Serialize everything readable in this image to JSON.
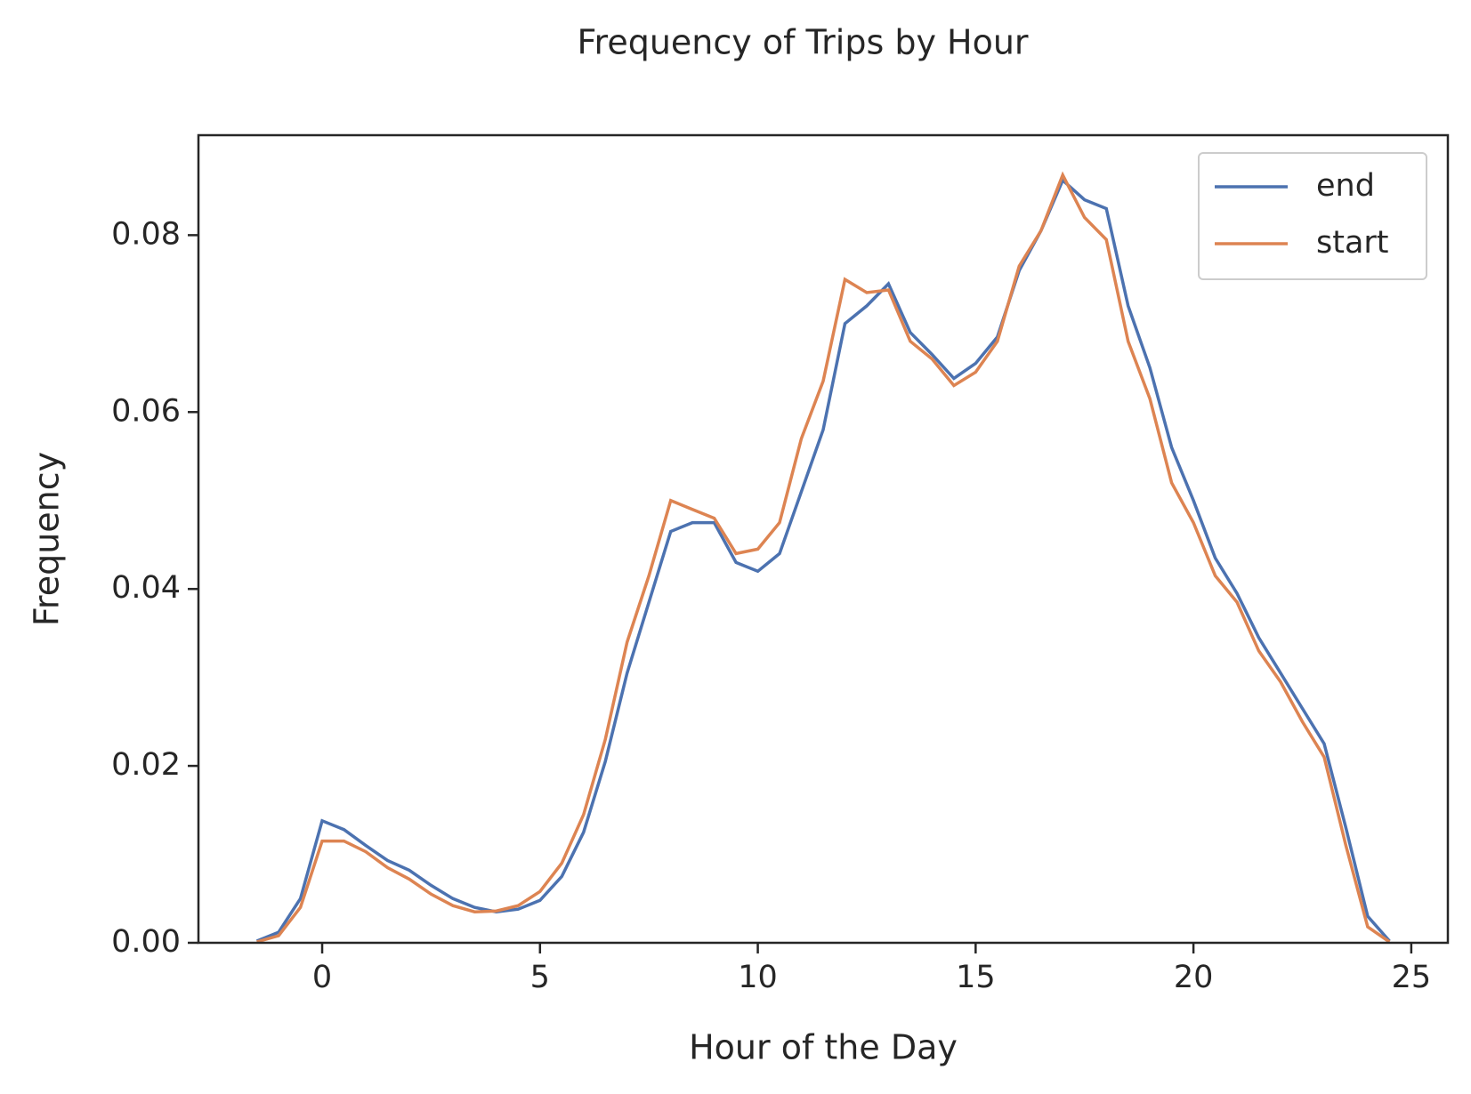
{
  "chart_data": {
    "type": "line",
    "title": "Frequency of Trips by Hour",
    "x_label": "Hour of the Day",
    "y_label": "Frequency",
    "x": [
      -1.5,
      -1,
      -0.5,
      0,
      0.5,
      1,
      1.5,
      2,
      2.5,
      3,
      3.5,
      4,
      4.5,
      5,
      5.5,
      6,
      6.5,
      7,
      7.5,
      8,
      8.5,
      9,
      9.5,
      10,
      10.5,
      11,
      11.5,
      12,
      12.5,
      13,
      13.5,
      14,
      14.5,
      15,
      15.5,
      16,
      16.5,
      17,
      17.5,
      18,
      18.5,
      19,
      19.5,
      20,
      20.5,
      21,
      21.5,
      22,
      22.5,
      23,
      23.5,
      24,
      24.5
    ],
    "series": [
      {
        "name": "end",
        "color": "#4c72b0",
        "values": [
          0.0002,
          0.0012,
          0.005,
          0.0138,
          0.0128,
          0.011,
          0.0093,
          0.0082,
          0.0065,
          0.005,
          0.004,
          0.0035,
          0.0038,
          0.0048,
          0.0075,
          0.0125,
          0.0205,
          0.0305,
          0.0385,
          0.0465,
          0.0475,
          0.0475,
          0.043,
          0.042,
          0.044,
          0.051,
          0.058,
          0.07,
          0.072,
          0.0745,
          0.069,
          0.0665,
          0.0638,
          0.0655,
          0.0685,
          0.076,
          0.0805,
          0.0862,
          0.084,
          0.083,
          0.072,
          0.065,
          0.056,
          0.05,
          0.0435,
          0.0395,
          0.0345,
          0.0305,
          0.0265,
          0.0225,
          0.013,
          0.003,
          0.0002
        ]
      },
      {
        "name": "start",
        "color": "#dd8452",
        "values": [
          0.0001,
          0.0008,
          0.004,
          0.0115,
          0.0115,
          0.0103,
          0.0085,
          0.0072,
          0.0055,
          0.0042,
          0.0035,
          0.0036,
          0.0042,
          0.0058,
          0.009,
          0.0145,
          0.023,
          0.034,
          0.0415,
          0.05,
          0.049,
          0.048,
          0.044,
          0.0445,
          0.0475,
          0.057,
          0.0635,
          0.075,
          0.0735,
          0.0738,
          0.068,
          0.066,
          0.063,
          0.0645,
          0.068,
          0.0765,
          0.0805,
          0.0868,
          0.082,
          0.0795,
          0.068,
          0.0615,
          0.052,
          0.0475,
          0.0415,
          0.0385,
          0.033,
          0.0295,
          0.025,
          0.021,
          0.011,
          0.0018,
          0.0001
        ]
      }
    ],
    "xlim": [
      -2.84,
      25.84
    ],
    "xticks": [
      0,
      5,
      10,
      15,
      20,
      25
    ],
    "ylim": [
      0,
      0.0913
    ],
    "yticks": [
      {
        "value": 0,
        "label": "0.00"
      },
      {
        "value": 0.02,
        "label": "0.02"
      },
      {
        "value": 0.04,
        "label": "0.04"
      },
      {
        "value": 0.06,
        "label": "0.06"
      },
      {
        "value": 0.08,
        "label": "0.08"
      }
    ],
    "legend": "upper right",
    "grid": false
  }
}
